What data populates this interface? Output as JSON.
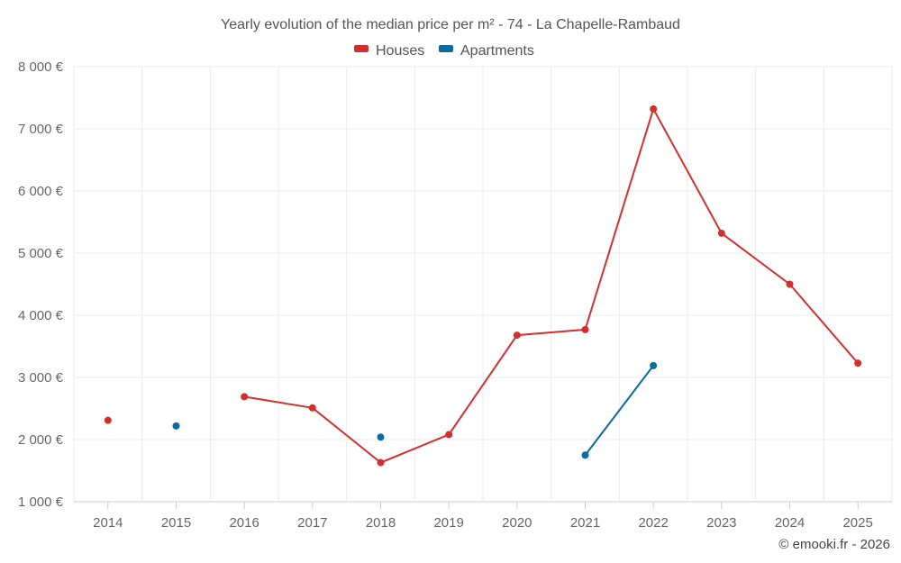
{
  "chart_data": {
    "type": "line",
    "title": "Yearly evolution of the median price per m² - 74 - La Chapelle-Rambaud",
    "categories": [
      "2014",
      "2015",
      "2016",
      "2017",
      "2018",
      "2019",
      "2020",
      "2021",
      "2022",
      "2023",
      "2024",
      "2025"
    ],
    "ylim": [
      1000,
      8000
    ],
    "yticks": [
      1000,
      2000,
      3000,
      4000,
      5000,
      6000,
      7000,
      8000
    ],
    "ytick_labels": [
      "1 000 €",
      "2 000 €",
      "3 000 €",
      "4 000 €",
      "5 000 €",
      "6 000 €",
      "7 000 €",
      "8 000 €"
    ],
    "grid": true,
    "legend_position": "top-center",
    "series": [
      {
        "name": "Houses",
        "color": "#d32f2f",
        "values": [
          2310,
          null,
          2690,
          2510,
          1630,
          2080,
          3680,
          3770,
          7320,
          5320,
          4500,
          3230
        ]
      },
      {
        "name": "Apartments",
        "color": "#0a6aa1",
        "values": [
          null,
          2220,
          null,
          null,
          2040,
          null,
          null,
          1750,
          3190,
          null,
          null,
          null
        ]
      }
    ],
    "credit": "© emooki.fr - 2026"
  }
}
